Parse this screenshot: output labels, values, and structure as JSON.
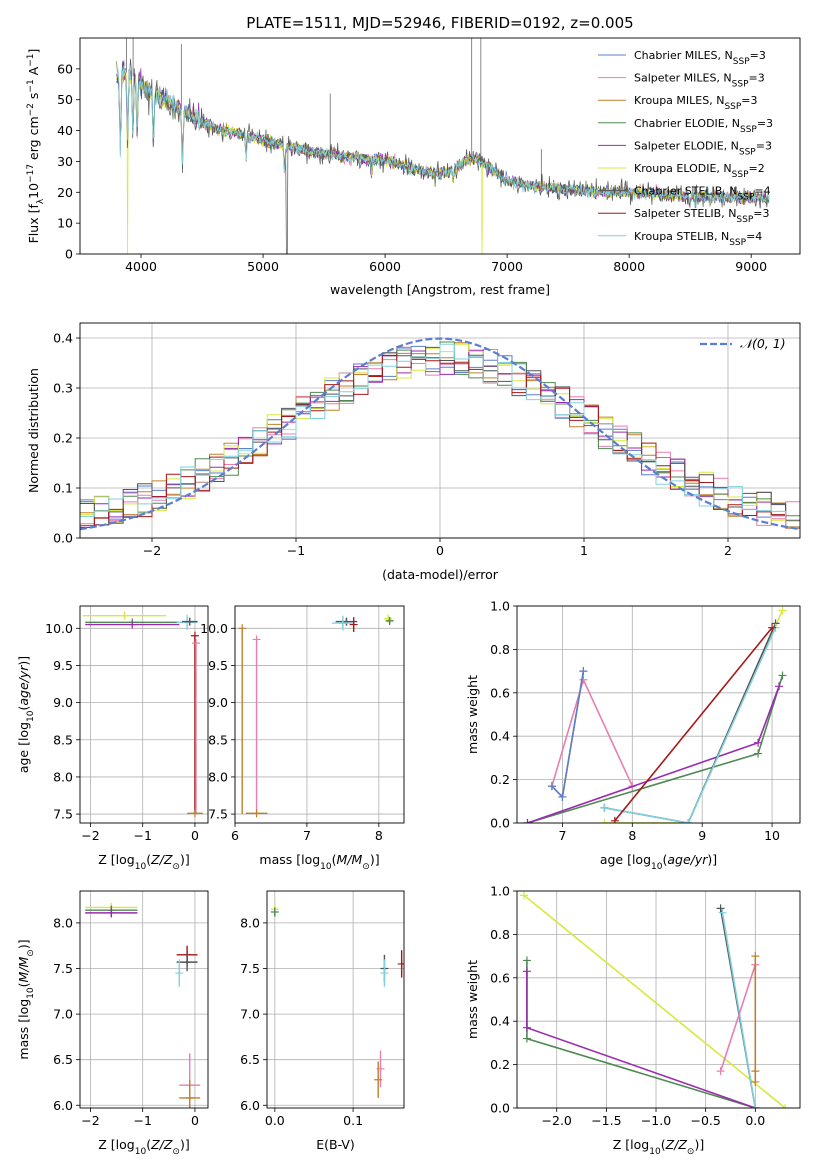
{
  "title": "PLATE=1511, MJD=52946, FIBERID=0192, z=0.005",
  "colors": {
    "Chabrier MILES": "#5b7fcf",
    "Salpeter MILES": "#e77fb0",
    "Kroupa MILES": "#c0812a",
    "Chabrier ELODIE": "#4f8a52",
    "Salpeter ELODIE": "#9a2ab0",
    "Kroupa ELODIE": "#d8e840",
    "Chabrier STELIB": "#555555",
    "Salpeter STELIB": "#a81717",
    "Kroupa STELIB": "#7fd0e0",
    "normal": "#5b7fcf"
  },
  "chart_data": [
    {
      "id": "spectrum",
      "type": "line",
      "xlabel": "wavelength [Angstrom, rest frame]",
      "ylabel": "Flux [f_λ 10^-17 erg cm^-2 s^-1 A^-1]",
      "xlim": [
        3500,
        9400
      ],
      "ylim": [
        0,
        70
      ],
      "xticks": [
        4000,
        5000,
        6000,
        7000,
        8000,
        9000
      ],
      "yticks": [
        0,
        10,
        20,
        30,
        40,
        50,
        60
      ],
      "legend_position": "upper right",
      "series": [
        {
          "name": "Chabrier MILES",
          "n_ssp": "3"
        },
        {
          "name": "Salpeter MILES",
          "n_ssp": "3"
        },
        {
          "name": "Kroupa MILES",
          "n_ssp": "3"
        },
        {
          "name": "Chabrier ELODIE",
          "n_ssp": "3"
        },
        {
          "name": "Salpeter ELODIE",
          "n_ssp": "3"
        },
        {
          "name": "Kroupa ELODIE",
          "n_ssp": "2"
        },
        {
          "name": "Chabrier STELIB",
          "n_ssp": "4"
        },
        {
          "name": "Salpeter STELIB",
          "n_ssp": "3"
        },
        {
          "name": "Kroupa STELIB",
          "n_ssp": "4"
        }
      ],
      "continuum": {
        "x": [
          3800,
          3900,
          4000,
          4200,
          4400,
          4600,
          4800,
          5000,
          5200,
          5400,
          5600,
          5800,
          6000,
          6200,
          6400,
          6550,
          6650,
          6750,
          6850,
          7000,
          7200,
          7400,
          7600,
          7800,
          8000,
          8200,
          8400,
          8600,
          8800,
          9000,
          9150
        ],
        "y": [
          58,
          59,
          55,
          50,
          45,
          41,
          39,
          37,
          35,
          33,
          32,
          31,
          30.5,
          28,
          26,
          27,
          30,
          31,
          28,
          24,
          22,
          21.5,
          20.5,
          20,
          20,
          19.5,
          19,
          18.7,
          18.5,
          18.3,
          18
        ]
      },
      "absorption_lines": [
        {
          "x": 3830,
          "depth": 28
        },
        {
          "x": 3890,
          "depth": 24
        },
        {
          "x": 3933,
          "depth": 20
        },
        {
          "x": 3968,
          "depth": 18
        },
        {
          "x": 4102,
          "depth": 18
        },
        {
          "x": 4340,
          "depth": 20
        },
        {
          "x": 4861,
          "depth": 8
        },
        {
          "x": 5177,
          "depth": 10
        },
        {
          "x": 5890,
          "depth": 5
        },
        {
          "x": 6560,
          "depth": 4
        },
        {
          "x": 8500,
          "depth": 3
        },
        {
          "x": 8542,
          "depth": 3
        },
        {
          "x": 8662,
          "depth": 3
        }
      ],
      "dropouts": [
        {
          "series": "Kroupa ELODIE",
          "x": 3890
        },
        {
          "series": "Chabrier STELIB",
          "x": 5195
        },
        {
          "series": "Kroupa ELODIE",
          "x": 6795
        },
        {
          "series": "Salpeter STELIB",
          "x": 7415
        }
      ],
      "spikes": [
        {
          "x": 3880,
          "top": 70
        },
        {
          "x": 3935,
          "top": 70
        },
        {
          "x": 4330,
          "top": 68
        },
        {
          "x": 5550,
          "top": 52
        },
        {
          "x": 6710,
          "top": 70
        },
        {
          "x": 6785,
          "top": 70
        },
        {
          "x": 7280,
          "top": 34
        }
      ]
    },
    {
      "id": "residuals",
      "type": "histogram",
      "xlabel": "(data-model)/error",
      "ylabel": "Normed distribution",
      "xlim": [
        -2.5,
        2.5
      ],
      "ylim": [
        0,
        0.43
      ],
      "xticks": [
        -2,
        -1,
        0,
        1,
        2
      ],
      "yticks": [
        0.0,
        0.1,
        0.2,
        0.3,
        0.4
      ],
      "bin_width": 0.1,
      "reference_curve": {
        "name": "𝒩(0, 1)",
        "mean": 0,
        "sigma": 1,
        "style": "dashed"
      },
      "legend_position": "upper right"
    },
    {
      "id": "age_vs_Z",
      "type": "scatter",
      "xlabel": "Z [log10(Z/Z⊙)]",
      "ylabel": "age [log10(age/yr)]",
      "xlim": [
        -2.2,
        0.25
      ],
      "ylim": [
        7.38,
        10.3
      ],
      "xticks": [
        -2,
        -1,
        0
      ],
      "yticks": [
        7.5,
        8.0,
        8.5,
        9.0,
        9.5,
        10.0
      ],
      "points": [
        {
          "series": "Kroupa ELODIE",
          "x": -1.35,
          "y": 10.17,
          "xerr": 0.8,
          "yerr": 0.0
        },
        {
          "series": "Chabrier ELODIE",
          "x": -1.2,
          "y": 10.08,
          "xerr": 0.9,
          "yerr": 0.0
        },
        {
          "series": "Salpeter ELODIE",
          "x": -1.2,
          "y": 10.05,
          "xerr": 0.9,
          "yerr": 0.0
        },
        {
          "series": "Kroupa STELIB",
          "x": -0.15,
          "y": 10.08,
          "xerr": 0.2,
          "yerr": 0.1
        },
        {
          "series": "Chabrier STELIB",
          "x": -0.1,
          "y": 10.09,
          "xerr": 0.15,
          "yerr": 0.05
        },
        {
          "series": "Salpeter STELIB",
          "x": 0.0,
          "y": 9.9,
          "xerr": 0.0,
          "yerr": 0.0,
          "vline_to": 7.5
        },
        {
          "series": "Salpeter MILES",
          "x": 0.02,
          "y": 9.8,
          "xerr": 0.0,
          "yerr": 0.0,
          "vline_to": 7.5
        },
        {
          "series": "Kroupa MILES",
          "x": 0.0,
          "y": 7.51,
          "xerr": 0.15,
          "yerr": 0.0
        }
      ]
    },
    {
      "id": "age_vs_mass",
      "type": "scatter",
      "xlabel": "mass [log10(M/M⊙)]",
      "ylabel": "",
      "xlim": [
        6.0,
        8.35
      ],
      "ylim": [
        7.38,
        10.3
      ],
      "xticks": [
        6,
        7,
        8
      ],
      "yticks": [
        7.5,
        8.0,
        8.5,
        9.0,
        9.5,
        10.0
      ],
      "points": [
        {
          "series": "Kroupa ELODIE",
          "x": 8.13,
          "y": 10.13,
          "xerr": 0.05,
          "yerr": 0.05
        },
        {
          "series": "Chabrier ELODIE",
          "x": 8.15,
          "y": 10.1,
          "xerr": 0.05,
          "yerr": 0.05
        },
        {
          "series": "Chabrier STELIB",
          "x": 7.55,
          "y": 10.09,
          "xerr": 0.15,
          "yerr": 0.05
        },
        {
          "series": "Kroupa STELIB",
          "x": 7.5,
          "y": 10.07,
          "xerr": 0.15,
          "yerr": 0.1
        },
        {
          "series": "Salpeter STELIB",
          "x": 7.65,
          "y": 10.05,
          "xerr": 0.0,
          "yerr": 0.1
        },
        {
          "series": "Kroupa MILES",
          "x": 6.1,
          "y": 10.0,
          "xerr": 0.0,
          "yerr": 0.0,
          "vline_to": 7.5
        },
        {
          "series": "Salpeter MILES",
          "x": 6.3,
          "y": 9.85,
          "xerr": 0.0,
          "yerr": 0.0,
          "vline_to": 7.5
        },
        {
          "series": "Kroupa MILES",
          "x": 6.3,
          "y": 7.51,
          "xerr": 0.15,
          "yerr": 0.0
        }
      ]
    },
    {
      "id": "weight_vs_age",
      "type": "line",
      "xlabel": "age [log10(age/yr)]",
      "ylabel": "mass weight",
      "xlim": [
        6.35,
        10.4
      ],
      "ylim": [
        0,
        1.0
      ],
      "xticks": [
        7,
        8,
        9,
        10
      ],
      "yticks": [
        0.0,
        0.2,
        0.4,
        0.6,
        0.8,
        1.0
      ],
      "series": [
        {
          "name": "Salpeter MILES",
          "x": [
            6.85,
            7.3,
            8.0
          ],
          "y": [
            0.17,
            0.66,
            0.17
          ]
        },
        {
          "name": "Kroupa MILES",
          "x": [
            6.85,
            7.0,
            7.3
          ],
          "y": [
            0.17,
            0.12,
            0.7
          ]
        },
        {
          "name": "Chabrier MILES",
          "x": [
            6.85,
            7.0,
            7.3
          ],
          "y": [
            0.17,
            0.12,
            0.7
          ]
        },
        {
          "name": "Chabrier ELODIE",
          "x": [
            6.5,
            9.8,
            10.15
          ],
          "y": [
            0.0,
            0.32,
            0.68
          ]
        },
        {
          "name": "Salpeter ELODIE",
          "x": [
            6.5,
            9.8,
            10.1
          ],
          "y": [
            0.0,
            0.37,
            0.63
          ]
        },
        {
          "name": "Kroupa ELODIE",
          "x": [
            7.6,
            8.8,
            10.15
          ],
          "y": [
            0.0,
            0.0,
            0.98
          ]
        },
        {
          "name": "Chabrier STELIB",
          "x": [
            7.6,
            8.8,
            10.05
          ],
          "y": [
            0.07,
            0.0,
            0.92
          ]
        },
        {
          "name": "Kroupa STELIB",
          "x": [
            7.6,
            8.8,
            10.05
          ],
          "y": [
            0.07,
            0.0,
            0.9
          ]
        },
        {
          "name": "Salpeter STELIB",
          "x": [
            7.75,
            10.0
          ],
          "y": [
            0.01,
            0.9
          ]
        }
      ]
    },
    {
      "id": "mass_vs_Z",
      "type": "scatter",
      "xlabel": "Z [log10(Z/Z⊙)]",
      "ylabel": "mass [log10(M/M⊙)]",
      "xlim": [
        -2.2,
        0.25
      ],
      "ylim": [
        5.97,
        8.35
      ],
      "xticks": [
        -2,
        -1,
        0
      ],
      "yticks": [
        6.0,
        6.5,
        7.0,
        7.5,
        8.0
      ],
      "points": [
        {
          "series": "Kroupa ELODIE",
          "x": -1.6,
          "y": 8.17,
          "xerr": 0.5,
          "yerr": 0.05
        },
        {
          "series": "Chabrier ELODIE",
          "x": -1.6,
          "y": 8.14,
          "xerr": 0.5,
          "yerr": 0.05
        },
        {
          "series": "Salpeter ELODIE",
          "x": -1.6,
          "y": 8.11,
          "xerr": 0.5,
          "yerr": 0.05
        },
        {
          "series": "Salpeter STELIB",
          "x": -0.15,
          "y": 7.65,
          "xerr": 0.2,
          "yerr": 0.1
        },
        {
          "series": "Chabrier STELIB",
          "x": -0.15,
          "y": 7.57,
          "xerr": 0.2,
          "yerr": 0.1
        },
        {
          "series": "Kroupa STELIB",
          "x": -0.3,
          "y": 7.45,
          "xerr": 0.02,
          "yerr": 0.15
        },
        {
          "series": "Salpeter MILES",
          "x": -0.1,
          "y": 6.22,
          "xerr": 0.2,
          "yerr": 0.35
        },
        {
          "series": "Kroupa MILES",
          "x": -0.1,
          "y": 6.08,
          "xerr": 0.2,
          "yerr": 0.2
        }
      ]
    },
    {
      "id": "mass_vs_ebv",
      "type": "scatter",
      "xlabel": "E(B-V)",
      "ylabel": "",
      "xlim": [
        -0.01,
        0.165
      ],
      "ylim": [
        5.97,
        8.35
      ],
      "xticks": [
        0.0,
        0.1
      ],
      "yticks": [
        6.0,
        6.5,
        7.0,
        7.5,
        8.0
      ],
      "points": [
        {
          "series": "Kroupa ELODIE",
          "x": 0.0,
          "y": 8.15,
          "xerr": 0.0,
          "yerr": 0.05
        },
        {
          "series": "Chabrier ELODIE",
          "x": 0.0,
          "y": 8.12,
          "xerr": 0.0,
          "yerr": 0.05
        },
        {
          "series": "Salpeter STELIB",
          "x": 0.162,
          "y": 7.55,
          "xerr": 0.0,
          "yerr": 0.15
        },
        {
          "series": "Chabrier STELIB",
          "x": 0.14,
          "y": 7.5,
          "xerr": 0.0,
          "yerr": 0.15
        },
        {
          "series": "Kroupa STELIB",
          "x": 0.14,
          "y": 7.45,
          "xerr": 0.0,
          "yerr": 0.15
        },
        {
          "series": "Salpeter MILES",
          "x": 0.135,
          "y": 6.4,
          "xerr": 0.0,
          "yerr": 0.2
        },
        {
          "series": "Kroupa MILES",
          "x": 0.132,
          "y": 6.28,
          "xerr": 0.0,
          "yerr": 0.2
        }
      ]
    },
    {
      "id": "weight_vs_Z",
      "type": "line",
      "xlabel": "Z [log10(Z/Z⊙)]",
      "ylabel": "mass weight",
      "xlim": [
        -2.4,
        0.45
      ],
      "ylim": [
        0,
        1.0
      ],
      "xticks": [
        -2.0,
        -1.5,
        -1.0,
        -0.5,
        0.0
      ],
      "yticks": [
        0.0,
        0.2,
        0.4,
        0.6,
        0.8,
        1.0
      ],
      "series": [
        {
          "name": "Kroupa ELODIE",
          "x": [
            -2.33,
            0.3
          ],
          "y": [
            0.98,
            0.0
          ]
        },
        {
          "name": "Chabrier ELODIE",
          "x": [
            -2.3,
            -2.3,
            0.0
          ],
          "y": [
            0.68,
            0.32,
            0.0
          ]
        },
        {
          "name": "Salpeter ELODIE",
          "x": [
            -2.3,
            -2.3,
            0.0
          ],
          "y": [
            0.63,
            0.37,
            0.0
          ]
        },
        {
          "name": "Chabrier STELIB",
          "x": [
            -0.35,
            0.0
          ],
          "y": [
            0.92,
            0.0
          ]
        },
        {
          "name": "Kroupa STELIB",
          "x": [
            -0.33,
            0.0
          ],
          "y": [
            0.9,
            0.0
          ]
        },
        {
          "name": "Salpeter MILES",
          "x": [
            -0.35,
            0.0
          ],
          "y": [
            0.17,
            0.66
          ]
        },
        {
          "name": "Kroupa MILES",
          "x": [
            0.0,
            0.0,
            0.0
          ],
          "y": [
            0.7,
            0.12,
            0.17
          ]
        }
      ]
    }
  ]
}
